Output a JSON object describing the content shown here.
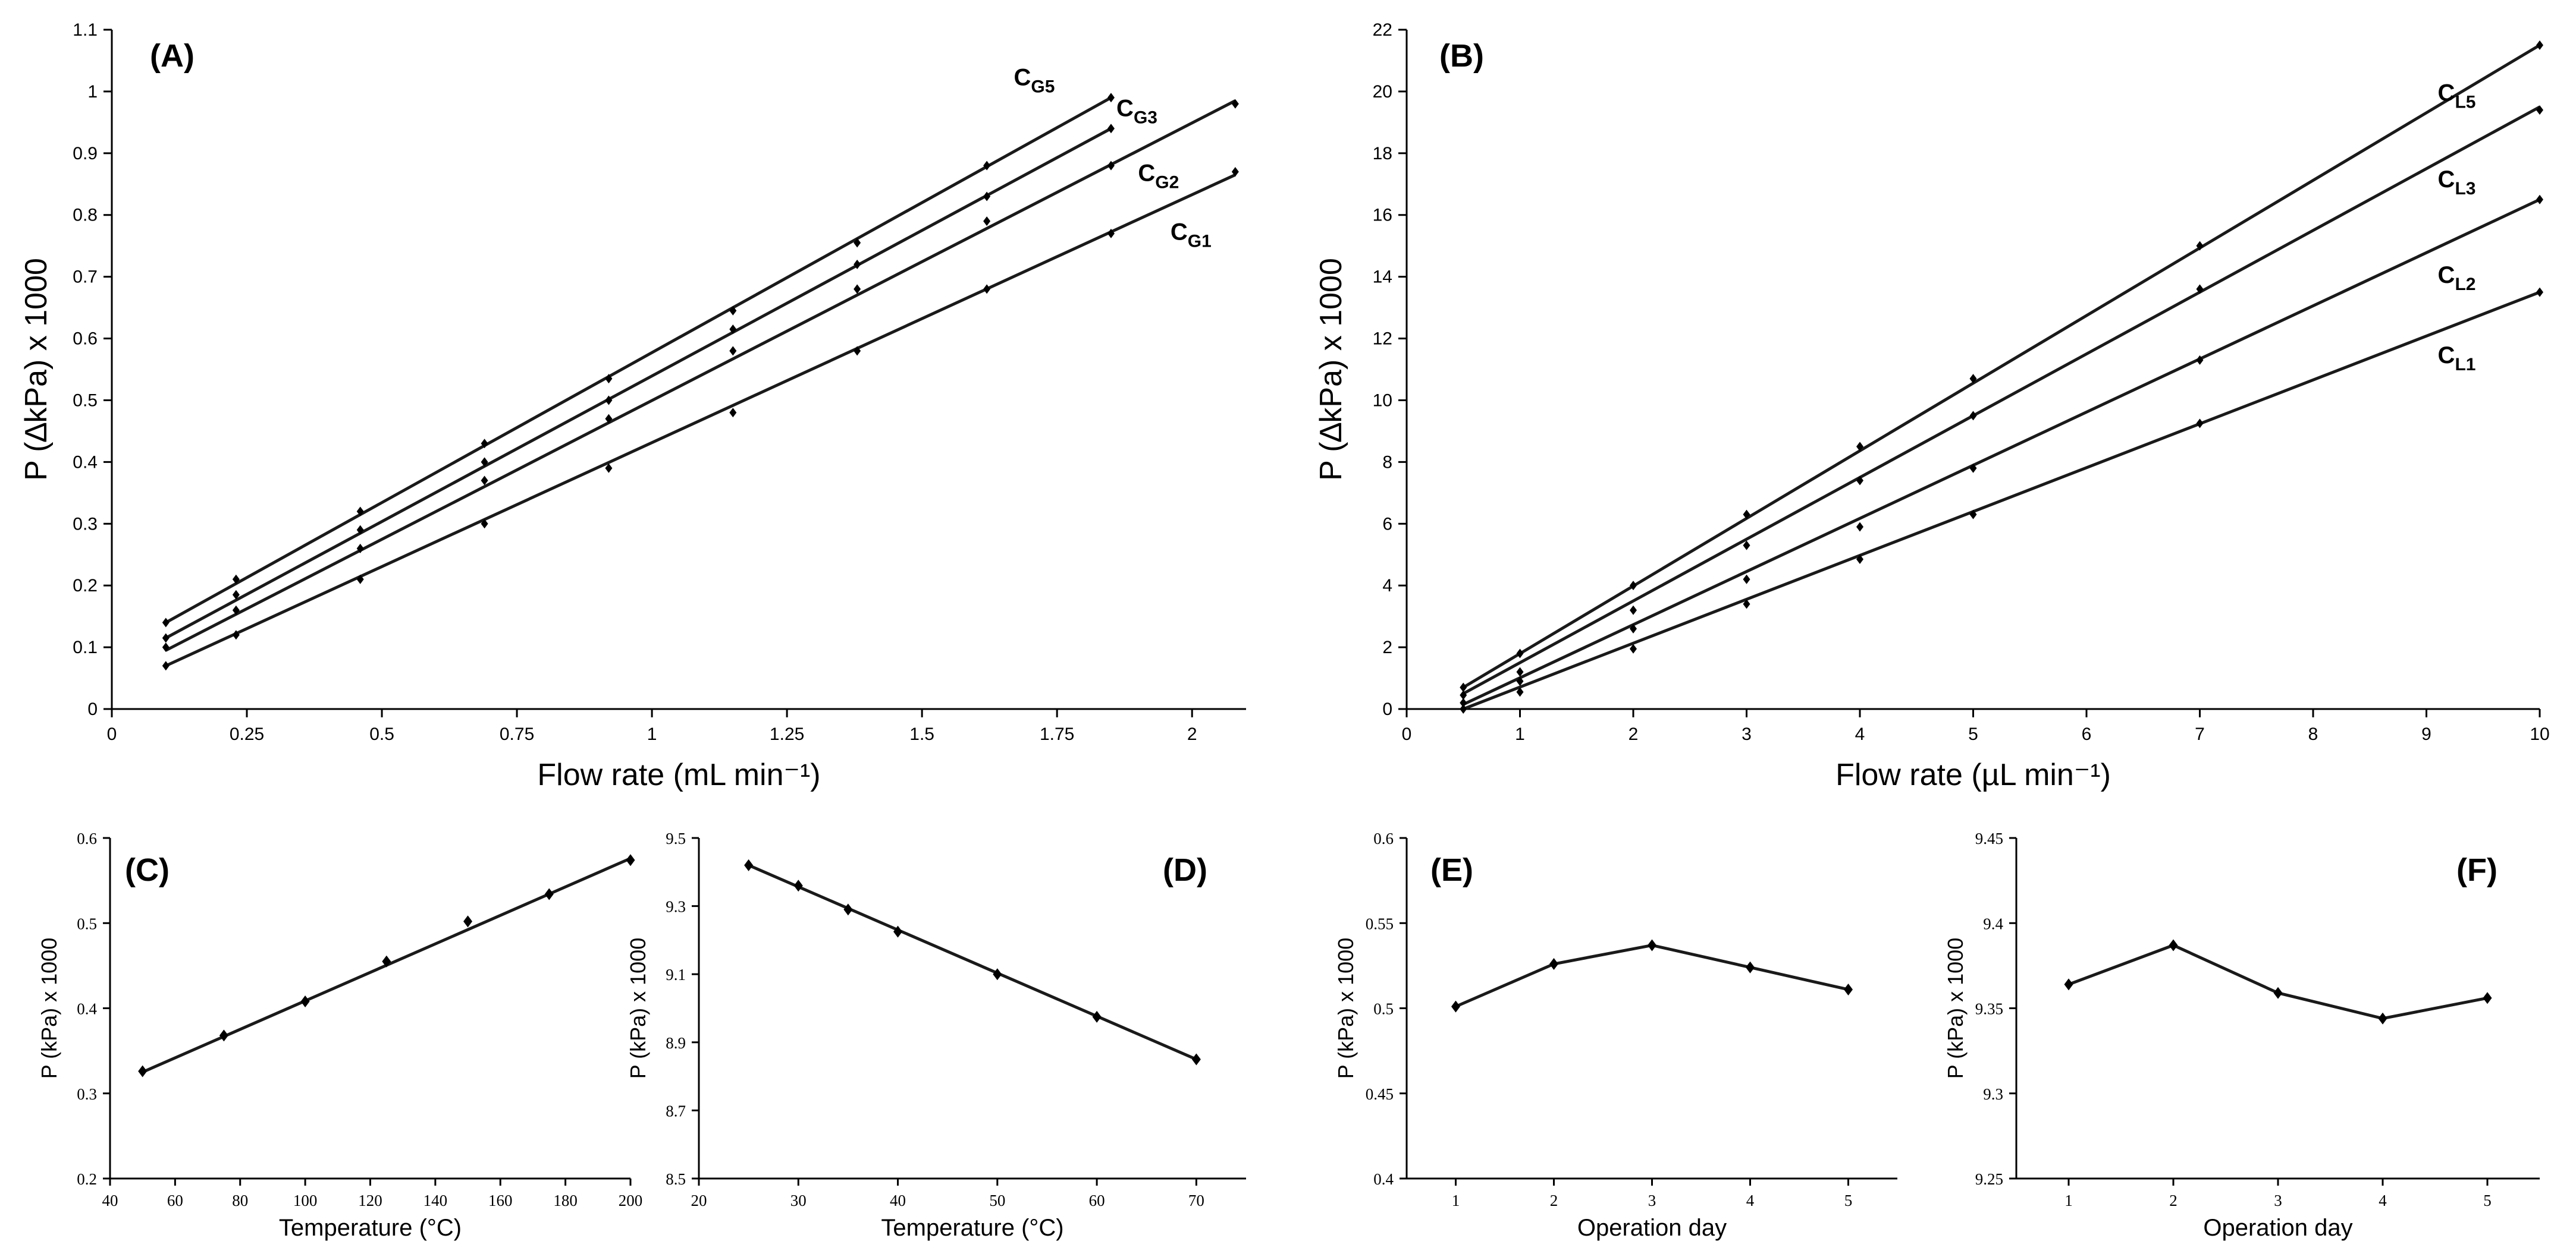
{
  "chart_data": [
    {
      "id": "A",
      "type": "scatter",
      "panel_label": "(A)",
      "xlabel": "Flow rate (mL min⁻¹)",
      "ylabel": "P (∆kPa) x 1000",
      "xlim": [
        0,
        2.1
      ],
      "ylim": [
        0,
        1.1
      ],
      "x_ticks": [
        0,
        0.25,
        0.5,
        0.75,
        1,
        1.25,
        1.5,
        1.75,
        2
      ],
      "x_tick_labels": [
        "0",
        "0.25",
        "0.5",
        "0.75",
        "1",
        "1.25",
        "1.5",
        "1.75",
        "2"
      ],
      "y_ticks": [
        0,
        0.1,
        0.2,
        0.3,
        0.4,
        0.5,
        0.6,
        0.7,
        0.8,
        0.9,
        1,
        1.1
      ],
      "y_tick_labels": [
        "0",
        "0.1",
        "0.2",
        "0.3",
        "0.4",
        "0.5",
        "0.6",
        "0.7",
        "0.8",
        "0.9",
        "1",
        "1.1"
      ],
      "series": [
        {
          "name": "CG5",
          "label_main": "C",
          "label_sub": "G5",
          "label_at": [
            1.67,
            1.01
          ],
          "x": [
            0.1,
            0.23,
            0.46,
            0.69,
            0.92,
            1.15,
            1.38,
            1.62,
            1.85
          ],
          "y": [
            0.14,
            0.21,
            0.32,
            0.43,
            0.535,
            0.645,
            0.755,
            0.88,
            0.99
          ],
          "fit": [
            [
              0.1,
              0.14
            ],
            [
              1.85,
              0.99
            ]
          ]
        },
        {
          "name": "CG3",
          "label_main": "C",
          "label_sub": "G3",
          "label_at": [
            1.86,
            0.96
          ],
          "x": [
            0.1,
            0.23,
            0.46,
            0.69,
            0.92,
            1.15,
            1.38,
            1.62,
            1.85
          ],
          "y": [
            0.115,
            0.185,
            0.29,
            0.4,
            0.5,
            0.615,
            0.72,
            0.83,
            0.94
          ],
          "fit": [
            [
              0.1,
              0.115
            ],
            [
              1.85,
              0.94
            ]
          ]
        },
        {
          "name": "CG2",
          "label_main": "C",
          "label_sub": "G2",
          "label_at": [
            1.9,
            0.855
          ],
          "x": [
            0.1,
            0.23,
            0.46,
            0.69,
            0.92,
            1.15,
            1.38,
            1.62,
            1.85,
            2.08
          ],
          "y": [
            0.1,
            0.16,
            0.26,
            0.37,
            0.47,
            0.58,
            0.68,
            0.79,
            0.88,
            0.98
          ],
          "fit": [
            [
              0.1,
              0.095
            ],
            [
              2.08,
              0.985
            ]
          ]
        },
        {
          "name": "CG1",
          "label_main": "C",
          "label_sub": "G1",
          "label_at": [
            1.96,
            0.76
          ],
          "x": [
            0.1,
            0.23,
            0.46,
            0.69,
            0.92,
            1.15,
            1.38,
            1.62,
            1.85,
            2.08
          ],
          "y": [
            0.07,
            0.12,
            0.21,
            0.3,
            0.39,
            0.48,
            0.58,
            0.68,
            0.77,
            0.87
          ],
          "fit": [
            [
              0.1,
              0.07
            ],
            [
              2.08,
              0.865
            ]
          ]
        }
      ]
    },
    {
      "id": "B",
      "type": "scatter",
      "panel_label": "(B)",
      "xlabel": "Flow rate (µL min⁻¹)",
      "ylabel": "P (∆kPa) x 1000",
      "xlim": [
        0,
        10
      ],
      "ylim": [
        0,
        22
      ],
      "x_ticks": [
        0,
        1,
        2,
        3,
        4,
        5,
        6,
        7,
        8,
        9,
        10
      ],
      "x_tick_labels": [
        "0",
        "1",
        "2",
        "3",
        "4",
        "5",
        "6",
        "7",
        "8",
        "9",
        "10"
      ],
      "y_ticks": [
        0,
        2,
        4,
        6,
        8,
        10,
        12,
        14,
        16,
        18,
        20,
        22
      ],
      "y_tick_labels": [
        "0",
        "2",
        "4",
        "6",
        "8",
        "10",
        "12",
        "14",
        "16",
        "18",
        "20",
        "22"
      ],
      "series": [
        {
          "name": "CL5",
          "label_main": "C",
          "label_sub": "L5",
          "label_at": [
            9.1,
            19.7
          ],
          "x": [
            0.5,
            1,
            2,
            3,
            4,
            5,
            7,
            10
          ],
          "y": [
            0.7,
            1.8,
            4,
            6.3,
            8.5,
            10.7,
            15,
            21.5
          ],
          "fit": [
            [
              0.5,
              0.7
            ],
            [
              10,
              21.5
            ]
          ]
        },
        {
          "name": "CL3",
          "label_main": "C",
          "label_sub": "L3",
          "label_at": [
            9.1,
            16.9
          ],
          "x": [
            0.5,
            1,
            2,
            3,
            4,
            5,
            7,
            10
          ],
          "y": [
            0.45,
            1.2,
            3.2,
            5.3,
            7.4,
            9.5,
            13.6,
            19.4
          ],
          "fit": [
            [
              0.5,
              0.5
            ],
            [
              10,
              19.5
            ]
          ]
        },
        {
          "name": "CL2",
          "label_main": "C",
          "label_sub": "L2",
          "label_at": [
            9.1,
            13.8
          ],
          "x": [
            0.5,
            1,
            2,
            3,
            4,
            5,
            7,
            10
          ],
          "y": [
            0.2,
            0.9,
            2.6,
            4.2,
            5.9,
            7.8,
            11.3,
            16.5
          ],
          "fit": [
            [
              0.5,
              0.15
            ],
            [
              10,
              16.5
            ]
          ]
        },
        {
          "name": "CL1",
          "label_main": "C",
          "label_sub": "L1",
          "label_at": [
            9.1,
            11.2
          ],
          "x": [
            0.5,
            1,
            2,
            3,
            4,
            5,
            7,
            10
          ],
          "y": [
            0.0,
            0.55,
            1.95,
            3.4,
            4.85,
            6.3,
            9.25,
            13.5
          ],
          "fit": [
            [
              0.5,
              0.0
            ],
            [
              10,
              13.5
            ]
          ]
        }
      ]
    },
    {
      "id": "C",
      "type": "line",
      "panel_label": "(C)",
      "xlabel": "Temperature (°C)",
      "ylabel": "P (kPa) x 1000",
      "xlim": [
        40,
        200
      ],
      "ylim": [
        0.2,
        0.6
      ],
      "x_ticks": [
        40,
        60,
        80,
        100,
        120,
        140,
        160,
        180,
        200
      ],
      "x_tick_labels": [
        "40",
        "60",
        "80",
        "100",
        "120",
        "140",
        "160",
        "180",
        "200"
      ],
      "y_ticks": [
        0.2,
        0.3,
        0.4,
        0.5,
        0.6
      ],
      "y_tick_labels": [
        "0.2",
        "0.3",
        "0.4",
        "0.5",
        "0.6"
      ],
      "line_mode": "fit",
      "series": [
        {
          "name": "C",
          "x": [
            50,
            75,
            100,
            125,
            150,
            175,
            200
          ],
          "y": [
            0.326,
            0.368,
            0.408,
            0.455,
            0.502,
            0.534,
            0.574
          ],
          "fit": [
            [
              50,
              0.325
            ],
            [
              200,
              0.576
            ]
          ]
        }
      ]
    },
    {
      "id": "D",
      "type": "line",
      "panel_label": "(D)",
      "xlabel": "Temperature (°C)",
      "ylabel": "P (kPa) x 1000",
      "xlim": [
        20,
        75
      ],
      "ylim": [
        8.5,
        9.5
      ],
      "x_ticks": [
        20,
        30,
        40,
        50,
        60,
        70
      ],
      "x_tick_labels": [
        "20",
        "30",
        "40",
        "50",
        "60",
        "70"
      ],
      "y_ticks": [
        8.5,
        8.7,
        8.9,
        9.1,
        9.3,
        9.5
      ],
      "y_tick_labels": [
        "8.5",
        "8.7",
        "8.9",
        "9.1",
        "9.3",
        "9.5"
      ],
      "line_mode": "fit",
      "series": [
        {
          "name": "D",
          "x": [
            25,
            30,
            35,
            40,
            50,
            60,
            70
          ],
          "y": [
            9.42,
            9.36,
            9.29,
            9.225,
            9.1,
            8.975,
            8.85
          ],
          "fit": [
            [
              25,
              9.42
            ],
            [
              70,
              8.85
            ]
          ]
        }
      ]
    },
    {
      "id": "E",
      "type": "line",
      "panel_label": "(E)",
      "xlabel": "Operation day",
      "ylabel": "P (kPa) x 1000",
      "xlim": [
        0.5,
        5.5
      ],
      "ylim": [
        0.4,
        0.6
      ],
      "x_ticks": [
        1,
        2,
        3,
        4,
        5
      ],
      "x_tick_labels": [
        "1",
        "2",
        "3",
        "4",
        "5"
      ],
      "y_ticks": [
        0.4,
        0.45,
        0.5,
        0.55,
        0.6
      ],
      "y_tick_labels": [
        "0.4",
        "0.45",
        "0.5",
        "0.55",
        "0.6"
      ],
      "line_mode": "connect",
      "series": [
        {
          "name": "E",
          "x": [
            1,
            2,
            3,
            4,
            5
          ],
          "y": [
            0.501,
            0.526,
            0.537,
            0.524,
            0.511
          ]
        }
      ]
    },
    {
      "id": "F",
      "type": "line",
      "panel_label": "(F)",
      "xlabel": "Operation day",
      "ylabel": "P (kPa) x 1000",
      "xlim": [
        0.5,
        5.5
      ],
      "ylim": [
        9.25,
        9.45
      ],
      "x_ticks": [
        1,
        2,
        3,
        4,
        5
      ],
      "x_tick_labels": [
        "1",
        "2",
        "3",
        "4",
        "5"
      ],
      "y_ticks": [
        9.25,
        9.3,
        9.35,
        9.4,
        9.45
      ],
      "y_tick_labels": [
        "9.25",
        "9.3",
        "9.35",
        "9.4",
        "9.45"
      ],
      "line_mode": "connect",
      "series": [
        {
          "name": "F",
          "x": [
            1,
            2,
            3,
            4,
            5
          ],
          "y": [
            9.364,
            9.387,
            9.359,
            9.344,
            9.356
          ]
        }
      ]
    }
  ]
}
